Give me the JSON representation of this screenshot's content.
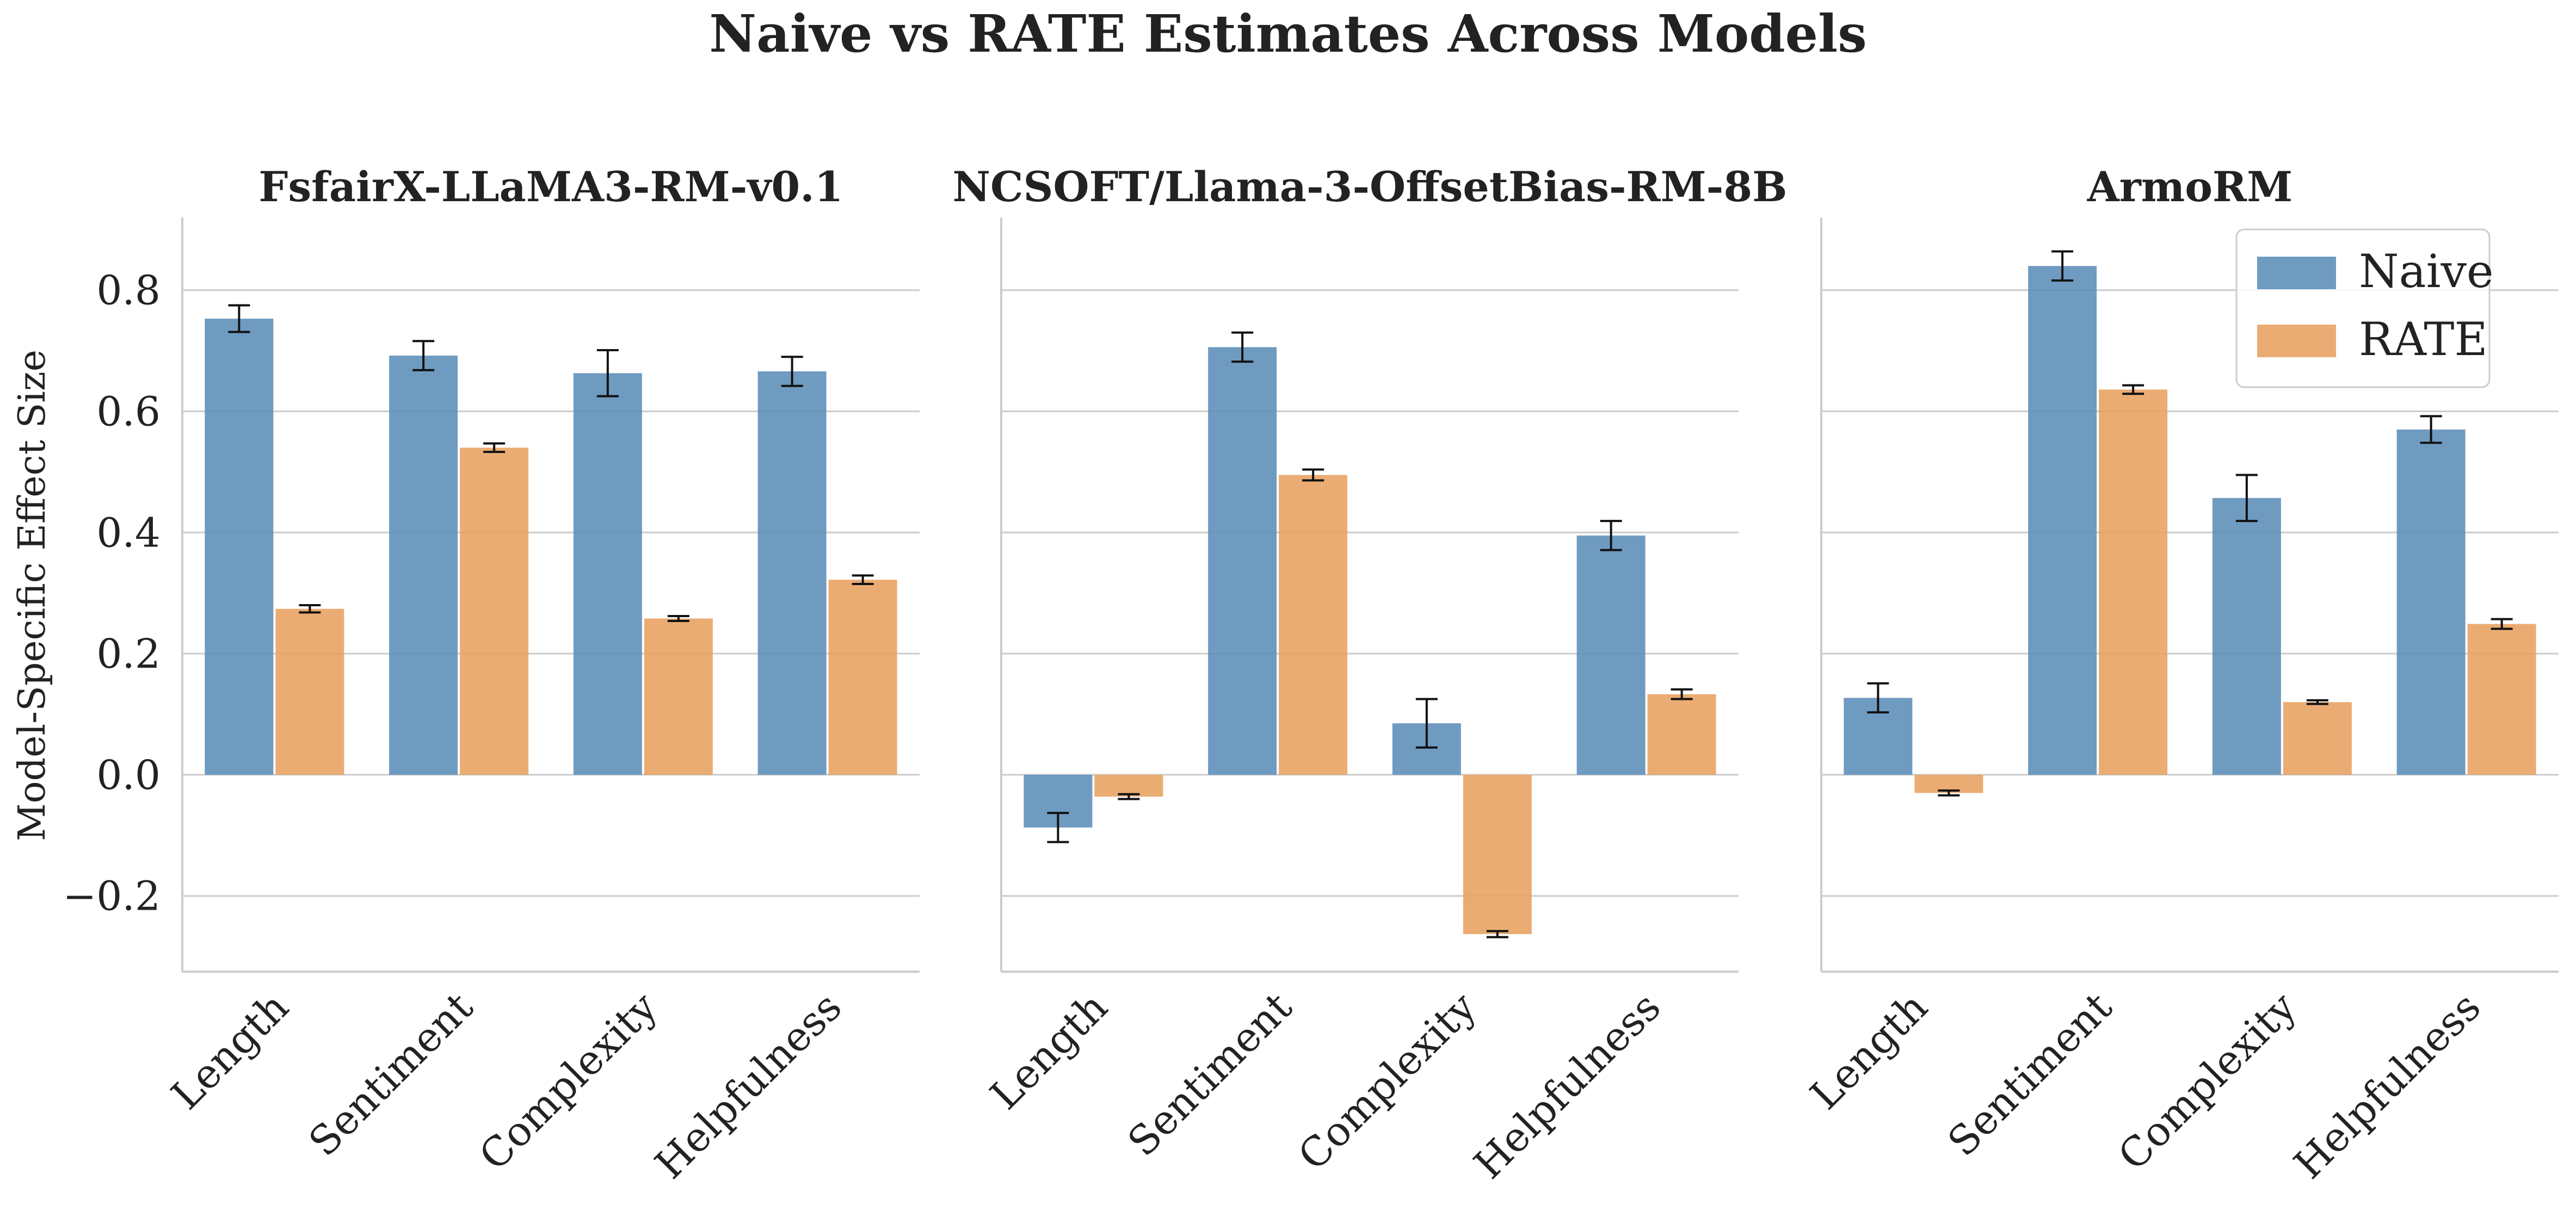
{
  "figure": {
    "title": "Naive vs RATE Estimates Across Models",
    "ylabel": "Model-Specific Effect Size"
  },
  "legend": {
    "position": "top-right (third panel)",
    "items": [
      {
        "label": "Naive",
        "color": "#5b8db8"
      },
      {
        "label": "RATE",
        "color": "#e8a060"
      }
    ]
  },
  "chart_data": [
    {
      "type": "bar",
      "title": "FsfairX-LLaMA3-RM-v0.1",
      "xlabel": "",
      "ylabel": "Model-Specific Effect Size",
      "categories": [
        "Length",
        "Sentiment",
        "Complexity",
        "Helpfulness"
      ],
      "ylim": [
        -0.325,
        0.92
      ],
      "yticks": [
        -0.2,
        0.0,
        0.2,
        0.4,
        0.6,
        0.8
      ],
      "ytick_labels": [
        "−0.2",
        "0.0",
        "0.2",
        "0.4",
        "0.6",
        "0.8"
      ],
      "grid": "horizontal",
      "series": [
        {
          "name": "Naive",
          "color": "#5b8db8",
          "values": [
            0.753,
            0.692,
            0.663,
            0.666
          ],
          "errors": [
            0.022,
            0.024,
            0.038,
            0.024
          ]
        },
        {
          "name": "RATE",
          "color": "#e8a060",
          "values": [
            0.274,
            0.54,
            0.258,
            0.322
          ],
          "errors": [
            0.006,
            0.007,
            0.004,
            0.007
          ]
        }
      ]
    },
    {
      "type": "bar",
      "title": "NCSOFT/Llama-3-OffsetBias-RM-8B",
      "xlabel": "",
      "ylabel": "",
      "categories": [
        "Length",
        "Sentiment",
        "Complexity",
        "Helpfulness"
      ],
      "ylim": [
        -0.325,
        0.92
      ],
      "yticks": [
        -0.2,
        0.0,
        0.2,
        0.4,
        0.6,
        0.8
      ],
      "grid": "horizontal",
      "series": [
        {
          "name": "Naive",
          "color": "#5b8db8",
          "values": [
            -0.087,
            0.706,
            0.085,
            0.395
          ],
          "errors": [
            0.024,
            0.024,
            0.04,
            0.024
          ]
        },
        {
          "name": "RATE",
          "color": "#e8a060",
          "values": [
            -0.036,
            0.495,
            -0.263,
            0.133
          ],
          "errors": [
            0.004,
            0.009,
            0.005,
            0.008
          ]
        }
      ]
    },
    {
      "type": "bar",
      "title": "ArmoRM",
      "xlabel": "",
      "ylabel": "",
      "categories": [
        "Length",
        "Sentiment",
        "Complexity",
        "Helpfulness"
      ],
      "ylim": [
        -0.325,
        0.92
      ],
      "yticks": [
        -0.2,
        0.0,
        0.2,
        0.4,
        0.6,
        0.8
      ],
      "grid": "horizontal",
      "series": [
        {
          "name": "Naive",
          "color": "#5b8db8",
          "values": [
            0.127,
            0.84,
            0.457,
            0.57
          ],
          "errors": [
            0.024,
            0.024,
            0.038,
            0.022
          ]
        },
        {
          "name": "RATE",
          "color": "#e8a060",
          "values": [
            -0.03,
            0.636,
            0.12,
            0.249
          ],
          "errors": [
            0.004,
            0.007,
            0.003,
            0.008
          ]
        }
      ]
    }
  ]
}
